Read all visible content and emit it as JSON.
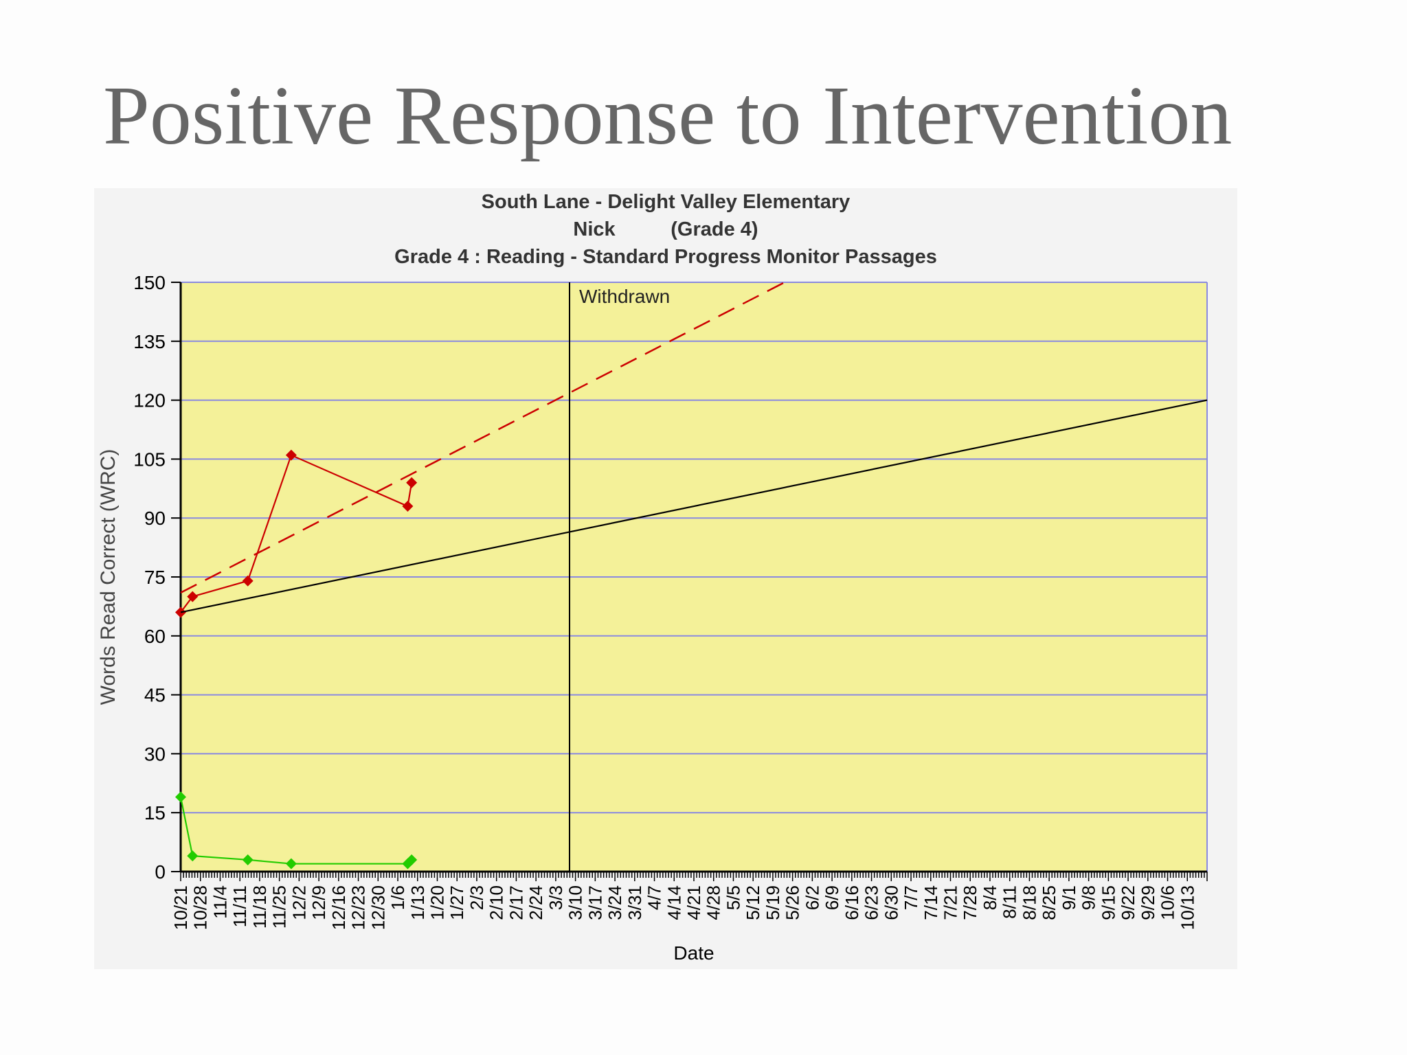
{
  "slide": {
    "title": "Positive Response to Intervention"
  },
  "chart_data": {
    "type": "line",
    "title_lines": [
      "South Lane - Delight Valley Elementary",
      "Nick          (Grade 4)",
      "Grade 4 : Reading - Standard Progress Monitor Passages"
    ],
    "xlabel": "Date",
    "ylabel": "Words Read Correct (WRC)",
    "ylim": [
      0,
      150
    ],
    "yticks": [
      0,
      15,
      30,
      45,
      60,
      75,
      90,
      105,
      120,
      135,
      150
    ],
    "grid": true,
    "x_tick_labels": [
      "10/21",
      "10/28",
      "11/4",
      "11/11",
      "11/18",
      "11/25",
      "12/2",
      "12/9",
      "12/16",
      "12/23",
      "12/30",
      "1/6",
      "1/13",
      "1/20",
      "1/27",
      "2/3",
      "2/10",
      "2/17",
      "2/24",
      "3/3",
      "3/10",
      "3/17",
      "3/24",
      "3/31",
      "4/7",
      "4/14",
      "4/21",
      "4/28",
      "5/5",
      "5/12",
      "5/19",
      "5/26",
      "6/2",
      "6/9",
      "6/16",
      "6/23",
      "6/30",
      "7/7",
      "7/14",
      "7/21",
      "7/28",
      "8/4",
      "8/11",
      "8/18",
      "8/25",
      "9/1",
      "9/8",
      "9/15",
      "9/22",
      "9/29",
      "10/6",
      "10/13"
    ],
    "x_span_weeks": 52,
    "annotations": [
      {
        "text": "Withdrawn",
        "x_week": 19.7
      }
    ],
    "series": [
      {
        "color": "#cc0000",
        "style": "solid",
        "points": [
          [
            0,
            66
          ],
          [
            0.6,
            70
          ],
          [
            3.4,
            74
          ],
          [
            5.6,
            106
          ],
          [
            11.5,
            93
          ],
          [
            11.7,
            99
          ]
        ]
      },
      {
        "color": "#22cc00",
        "style": "solid",
        "points": [
          [
            0,
            19
          ],
          [
            0.6,
            4
          ],
          [
            3.4,
            3
          ],
          [
            5.6,
            2
          ],
          [
            11.5,
            2
          ],
          [
            11.7,
            3
          ]
        ]
      },
      {
        "color": "#cc0000",
        "style": "dashed",
        "points": [
          [
            0,
            71
          ],
          [
            30.6,
            150
          ]
        ]
      },
      {
        "color": "#000000",
        "style": "solid",
        "points": [
          [
            0,
            66
          ],
          [
            52,
            120
          ]
        ]
      }
    ]
  }
}
